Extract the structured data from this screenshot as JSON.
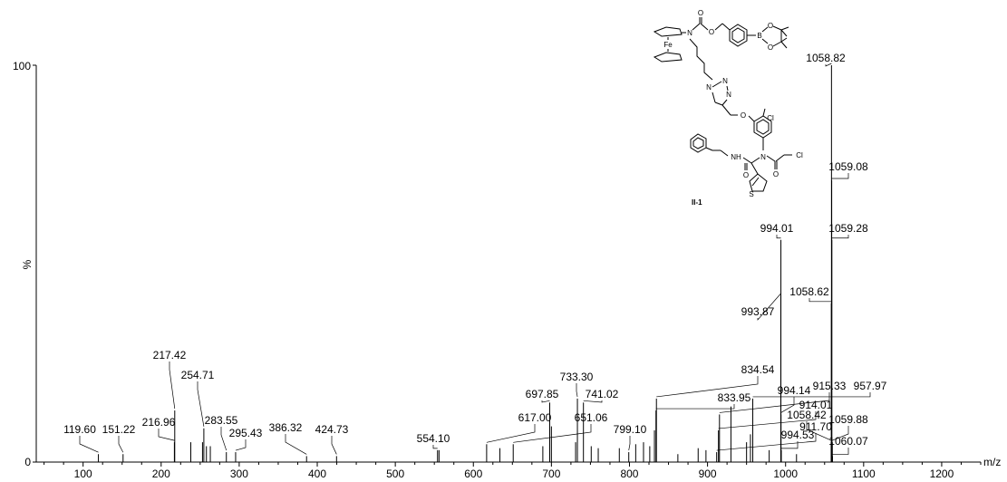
{
  "chart_data": {
    "type": "bar",
    "title": "",
    "xlabel": "m/z",
    "ylabel": "%",
    "xlim": [
      40,
      1250
    ],
    "ylim": [
      0,
      100
    ],
    "x_ticks": [
      100,
      200,
      300,
      400,
      500,
      600,
      700,
      800,
      900,
      1000,
      1100,
      1200
    ],
    "y_ticks": [
      0,
      100
    ],
    "labeled_peaks": [
      {
        "mz": 119.6,
        "label": "119.60",
        "intensity": 2
      },
      {
        "mz": 151.22,
        "label": "151.22",
        "intensity": 2
      },
      {
        "mz": 216.96,
        "label": "216.96",
        "intensity": 5
      },
      {
        "mz": 217.42,
        "label": "217.42",
        "intensity": 13
      },
      {
        "mz": 254.71,
        "label": "254.71",
        "intensity": 8.5
      },
      {
        "mz": 283.55,
        "label": "283.55",
        "intensity": 2.5
      },
      {
        "mz": 295.43,
        "label": "295.43",
        "intensity": 2.5
      },
      {
        "mz": 386.32,
        "label": "386.32",
        "intensity": 1.5
      },
      {
        "mz": 424.73,
        "label": "424.73",
        "intensity": 1.5
      },
      {
        "mz": 554.1,
        "label": "554.10",
        "intensity": 3
      },
      {
        "mz": 617.0,
        "label": "617.00",
        "intensity": 4.5
      },
      {
        "mz": 651.06,
        "label": "651.06",
        "intensity": 4.5
      },
      {
        "mz": 697.85,
        "label": "697.85",
        "intensity": 15
      },
      {
        "mz": 733.3,
        "label": "733.30",
        "intensity": 16
      },
      {
        "mz": 741.02,
        "label": "741.02",
        "intensity": 15
      },
      {
        "mz": 799.1,
        "label": "799.10",
        "intensity": 2.5
      },
      {
        "mz": 833.95,
        "label": "833.95",
        "intensity": 13
      },
      {
        "mz": 834.54,
        "label": "834.54",
        "intensity": 16
      },
      {
        "mz": 911.7,
        "label": "911.70",
        "intensity": 2.5
      },
      {
        "mz": 914.01,
        "label": "914.01",
        "intensity": 8
      },
      {
        "mz": 915.33,
        "label": "915.33",
        "intensity": 12
      },
      {
        "mz": 957.97,
        "label": "957.97",
        "intensity": 16
      },
      {
        "mz": 993.87,
        "label": "993.87",
        "intensity": 42
      },
      {
        "mz": 994.01,
        "label": "994.01",
        "intensity": 56
      },
      {
        "mz": 994.14,
        "label": "994.14",
        "intensity": 12
      },
      {
        "mz": 994.53,
        "label": "994.53",
        "intensity": 3
      },
      {
        "mz": 1058.42,
        "label": "1058.42",
        "intensity": 5
      },
      {
        "mz": 1058.62,
        "label": "1058.62",
        "intensity": 40
      },
      {
        "mz": 1058.82,
        "label": "1058.82",
        "intensity": 100
      },
      {
        "mz": 1059.08,
        "label": "1059.08",
        "intensity": 71
      },
      {
        "mz": 1059.28,
        "label": "1059.28",
        "intensity": 56
      },
      {
        "mz": 1059.88,
        "label": "1059.88",
        "intensity": 5
      },
      {
        "mz": 1060.07,
        "label": "1060.07",
        "intensity": 1.5
      }
    ],
    "minor_peaks": [
      {
        "mz": 238,
        "intensity": 5
      },
      {
        "mz": 253,
        "intensity": 5
      },
      {
        "mz": 258,
        "intensity": 4
      },
      {
        "mz": 263,
        "intensity": 4
      },
      {
        "mz": 556,
        "intensity": 3
      },
      {
        "mz": 634,
        "intensity": 3.5
      },
      {
        "mz": 689,
        "intensity": 4
      },
      {
        "mz": 700,
        "intensity": 9
      },
      {
        "mz": 731,
        "intensity": 5
      },
      {
        "mz": 751,
        "intensity": 4
      },
      {
        "mz": 760,
        "intensity": 3.5
      },
      {
        "mz": 787,
        "intensity": 3.5
      },
      {
        "mz": 808,
        "intensity": 4.5
      },
      {
        "mz": 818,
        "intensity": 5
      },
      {
        "mz": 826,
        "intensity": 4
      },
      {
        "mz": 832,
        "intensity": 8
      },
      {
        "mz": 862,
        "intensity": 2
      },
      {
        "mz": 888,
        "intensity": 3.5
      },
      {
        "mz": 898,
        "intensity": 3
      },
      {
        "mz": 930,
        "intensity": 14
      },
      {
        "mz": 950,
        "intensity": 5
      },
      {
        "mz": 955,
        "intensity": 7
      },
      {
        "mz": 979,
        "intensity": 3
      },
      {
        "mz": 1014,
        "intensity": 2
      }
    ]
  },
  "structure": {
    "compound_label": "II-1",
    "atoms": {
      "fe": "Fe",
      "n_carbamate": "N",
      "o_carbonyl": "O",
      "o_ester": "O",
      "b": "B",
      "o_boronate_1": "O",
      "o_boronate_2": "O",
      "n1": "N",
      "n2": "N",
      "n3": "N",
      "o_ether": "O",
      "cl_aryl": "Cl",
      "n_amide": "N",
      "nh": "NH",
      "o_amide_1": "O",
      "o_amide_2": "O",
      "cl_acyl": "Cl",
      "s": "S"
    }
  }
}
